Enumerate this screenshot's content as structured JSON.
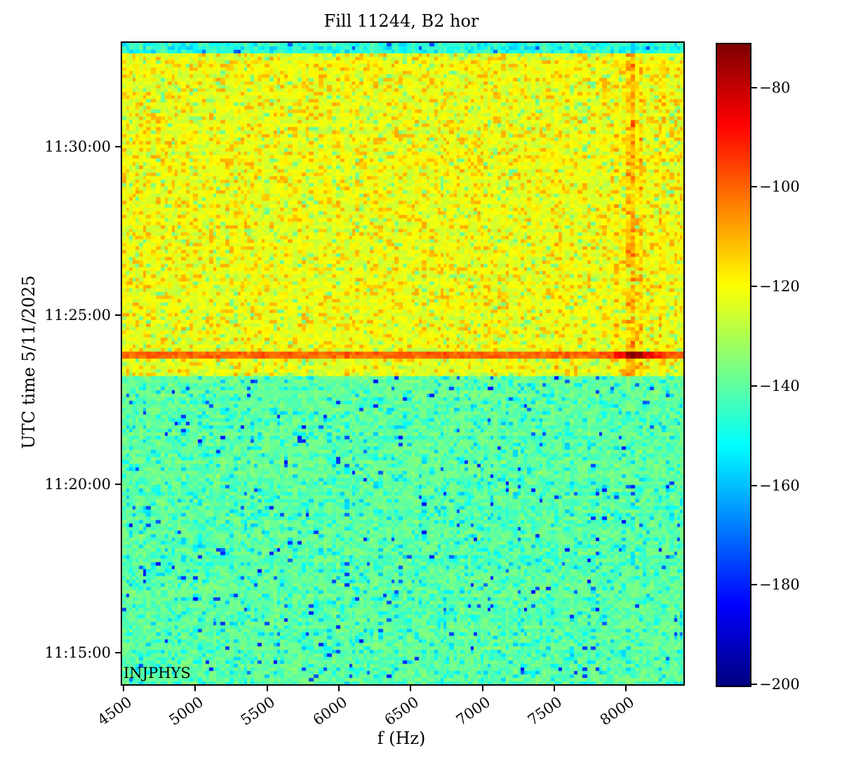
{
  "chart_data": {
    "type": "heatmap",
    "title": "Fill 11244, B2 hor",
    "xlabel": "f (Hz)",
    "ylabel": "UTC time 5/11/2025",
    "annotation": "INJPHYS",
    "x_range_hz": [
      4490,
      8400
    ],
    "x_ticks_hz": [
      4500,
      5000,
      5500,
      6000,
      6500,
      7000,
      7500,
      8000
    ],
    "y_ticks": [
      "11:15:00",
      "11:20:00",
      "11:25:00",
      "11:30:00"
    ],
    "time_top": "11:33:04",
    "time_bottom": "11:14:04",
    "colorbar": {
      "colormap": "jet",
      "vmin": -200,
      "vmax": -71,
      "ticks": [
        -80,
        -100,
        -120,
        -140,
        -160,
        -180,
        -200
      ]
    },
    "regions": [
      {
        "name": "top-cyan-stripe",
        "t_start": "11:32:44",
        "t_end": "11:33:04",
        "base_db": -146,
        "noise_db": 3,
        "apply_vertical_features": false,
        "speckles": [
          {
            "p": 0.04,
            "db": -172,
            "jitter": 10
          },
          {
            "p": 0.25,
            "db": -155,
            "jitter": 8
          }
        ]
      },
      {
        "name": "post-event-yellow",
        "t_start": "11:23:57",
        "t_end": "11:32:44",
        "base_db": -123,
        "noise_db": 3,
        "apply_vertical_features": true,
        "speckles": [
          {
            "p": 0.05,
            "db": -137,
            "jitter": 5
          },
          {
            "p": 0.16,
            "db": -111,
            "jitter": 6
          },
          {
            "p": 0.1,
            "db": -118,
            "jitter": 3
          }
        ]
      },
      {
        "name": "burst-stripe",
        "t_start": "11:23:40",
        "t_end": "11:23:57",
        "base_db": -101,
        "noise_db": 2.5,
        "apply_vertical_features": true,
        "peak_db": -79,
        "peak_freq_hz": 8070,
        "peak_sigma_hz": 130,
        "speckles": []
      },
      {
        "name": "pre-burst-yellow",
        "t_start": "11:23:11",
        "t_end": "11:23:40",
        "base_db": -123,
        "noise_db": 3,
        "apply_vertical_features": true,
        "speckles": [
          {
            "p": 0.05,
            "db": -137,
            "jitter": 5
          },
          {
            "p": 0.16,
            "db": -111,
            "jitter": 6
          },
          {
            "p": 0.1,
            "db": -118,
            "jitter": 3
          }
        ]
      },
      {
        "name": "pre-event-green",
        "t_start": "11:14:04",
        "t_end": "11:23:11",
        "base_db": -141,
        "noise_db": 3,
        "apply_vertical_features": false,
        "speckles": [
          {
            "p": 0.02,
            "db": -176,
            "jitter": 14
          },
          {
            "p": 0.1,
            "db": -154,
            "jitter": 10
          },
          {
            "p": 0.22,
            "db": -136,
            "jitter": 4
          }
        ]
      }
    ],
    "vertical_features": [
      {
        "freq_hz": 7525,
        "boost_db": 5,
        "sigma_hz": 8
      },
      {
        "freq_hz": 7925,
        "boost_db": 6,
        "sigma_hz": 10
      },
      {
        "freq_hz": 8030,
        "boost_db": 12,
        "sigma_hz": 35
      },
      {
        "freq_hz": 8060,
        "boost_db": 10,
        "sigma_hz": 9
      },
      {
        "freq_hz": 8105,
        "boost_db": 7,
        "sigma_hz": 7
      },
      {
        "freq_hz": 8250,
        "boost_db": 10,
        "sigma_hz": 5
      }
    ],
    "noise_seed": 20250511
  }
}
